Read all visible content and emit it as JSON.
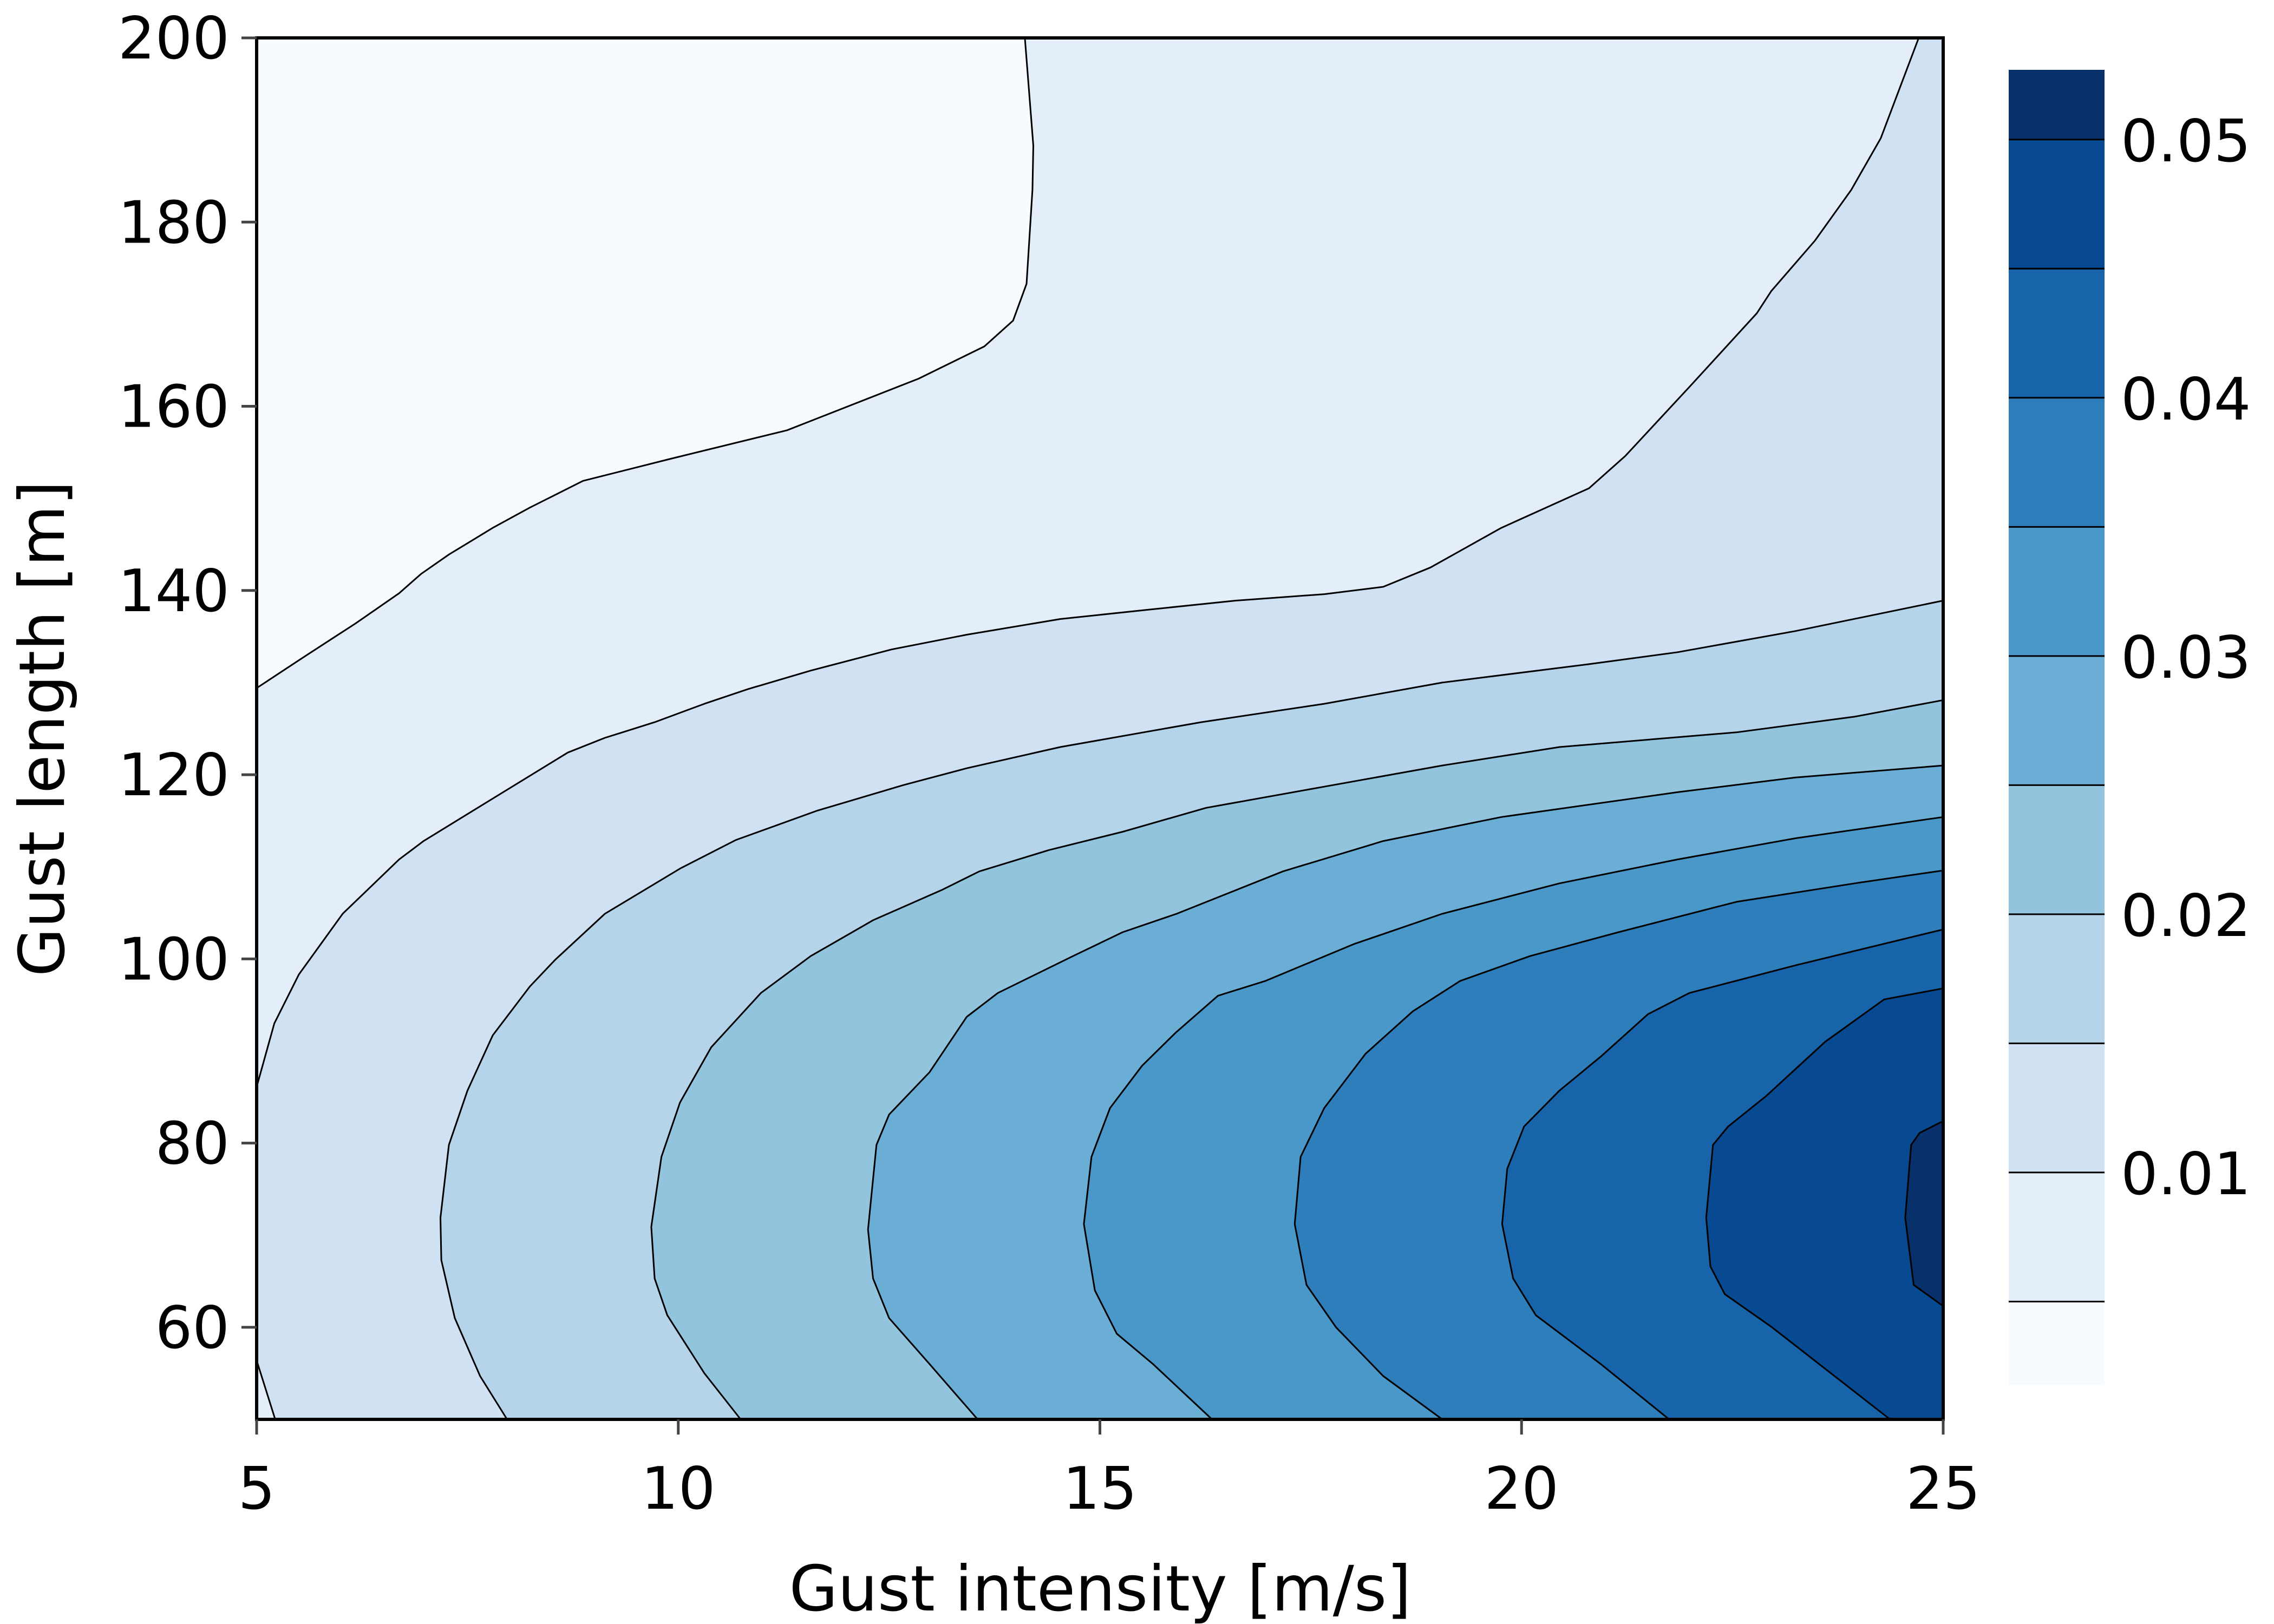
{
  "chart_data": {
    "type": "contourf",
    "title": "",
    "xlabel": "Gust intensity [m/s]",
    "ylabel": "Gust length [m]",
    "xlim": [
      5,
      25
    ],
    "ylim": [
      50,
      200
    ],
    "xticks": [
      5,
      10,
      15,
      20,
      25
    ],
    "yticks": [
      60,
      80,
      100,
      120,
      140,
      160,
      180,
      200
    ],
    "colormap": "Blues",
    "levels": [
      0.0018,
      0.005,
      0.01,
      0.015,
      0.02,
      0.025,
      0.03,
      0.035,
      0.04,
      0.045,
      0.05,
      0.0527
    ],
    "level_colors": [
      "#f7fbff",
      "#e3eef9",
      "#cfe1f2",
      "#b5d4e9",
      "#93c4de",
      "#6aaed6",
      "#4a98c9",
      "#2e7ebc",
      "#1764ab",
      "#084a91",
      "#08306b"
    ],
    "colorbar_ticks": [
      "0.01",
      "0.02",
      "0.03",
      "0.04",
      "0.05"
    ],
    "colorbar_tick_values": [
      0.01,
      0.02,
      0.03,
      0.04,
      0.05
    ],
    "contours": [
      {
        "level": 0.005,
        "segments": [
          [
            [
              5,
              129.4
            ],
            [
              5.58,
              132.9
            ],
            [
              6.17,
              136.4
            ],
            [
              6.69,
              139.7
            ],
            [
              6.95,
              141.8
            ],
            [
              7.28,
              143.9
            ],
            [
              7.8,
              146.8
            ],
            [
              8.24,
              149
            ],
            [
              8.87,
              151.9
            ],
            [
              9.91,
              154.3
            ],
            [
              11.29,
              157.4
            ],
            [
              12.85,
              163
            ],
            [
              13.63,
              166.5
            ],
            [
              13.97,
              169.3
            ],
            [
              14.13,
              173.3
            ],
            [
              14.2,
              183.5
            ],
            [
              14.21,
              188.3
            ],
            [
              14.11,
              200
            ]
          ]
        ]
      },
      {
        "level": 0.01,
        "segments": [
          [
            [
              5,
              86.1
            ],
            [
              5.21,
              93
            ],
            [
              5.5,
              98.3
            ],
            [
              6.02,
              104.9
            ],
            [
              6.69,
              110.8
            ],
            [
              6.98,
              112.8
            ],
            [
              7.87,
              117.8
            ],
            [
              8.69,
              122.4
            ],
            [
              9.13,
              124
            ],
            [
              9.72,
              125.7
            ],
            [
              10.31,
              127.7
            ],
            [
              10.83,
              129.3
            ],
            [
              11.57,
              131.3
            ],
            [
              12.53,
              133.6
            ],
            [
              13.42,
              135.2
            ],
            [
              14.53,
              136.9
            ],
            [
              15.56,
              137.9
            ],
            [
              16.61,
              138.9
            ],
            [
              17.66,
              139.6
            ],
            [
              18.36,
              140.4
            ],
            [
              18.92,
              142.5
            ],
            [
              19.76,
              146.8
            ],
            [
              20.8,
              151.1
            ],
            [
              21.23,
              154.6
            ],
            [
              22.0,
              162.2
            ],
            [
              22.79,
              170.1
            ],
            [
              22.96,
              172.5
            ],
            [
              23.48,
              178
            ],
            [
              23.91,
              183.5
            ],
            [
              24.26,
              189.1
            ],
            [
              24.71,
              200
            ]
          ],
          [
            [
              5.22,
              50
            ],
            [
              5,
              56.4
            ]
          ]
        ]
      },
      {
        "level": 0.015,
        "segments": [
          [
            [
              7.97,
              50
            ],
            [
              7.65,
              54.7
            ],
            [
              7.35,
              61
            ],
            [
              7.19,
              67.3
            ],
            [
              7.18,
              71.9
            ],
            [
              7.28,
              79.8
            ],
            [
              7.5,
              85.7
            ],
            [
              7.8,
              91.7
            ],
            [
              8.24,
              97
            ],
            [
              8.54,
              99.9
            ],
            [
              9.13,
              104.9
            ],
            [
              10.02,
              109.8
            ],
            [
              10.68,
              112.9
            ],
            [
              11.65,
              116.1
            ],
            [
              12.68,
              118.9
            ],
            [
              13.42,
              120.7
            ],
            [
              14.53,
              123
            ],
            [
              16.2,
              125.7
            ],
            [
              17.66,
              127.7
            ],
            [
              19.06,
              130
            ],
            [
              20.8,
              132
            ],
            [
              21.85,
              133.3
            ],
            [
              23.25,
              135.6
            ],
            [
              25,
              138.9
            ]
          ]
        ]
      },
      {
        "level": 0.02,
        "segments": [
          [
            [
              10.74,
              50
            ],
            [
              10.31,
              55
            ],
            [
              9.87,
              61.3
            ],
            [
              9.72,
              65.3
            ],
            [
              9.68,
              70.9
            ],
            [
              9.8,
              78.5
            ],
            [
              10.02,
              84.4
            ],
            [
              10.39,
              90.4
            ],
            [
              10.98,
              96.3
            ],
            [
              11.57,
              100.3
            ],
            [
              12.31,
              104.2
            ],
            [
              13.13,
              107.5
            ],
            [
              13.57,
              109.5
            ],
            [
              14.39,
              111.8
            ],
            [
              15.27,
              113.8
            ],
            [
              16.26,
              116.4
            ],
            [
              17.66,
              118.7
            ],
            [
              19.06,
              121
            ],
            [
              20.45,
              123
            ],
            [
              22.55,
              124.6
            ],
            [
              23.95,
              126.3
            ],
            [
              25,
              128.1
            ]
          ]
        ]
      },
      {
        "level": 0.025,
        "segments": [
          [
            [
              13.55,
              50
            ],
            [
              12.98,
              56
            ],
            [
              12.5,
              61
            ],
            [
              12.31,
              65.3
            ],
            [
              12.25,
              70.6
            ],
            [
              12.35,
              79.8
            ],
            [
              12.5,
              83.1
            ],
            [
              12.98,
              87.7
            ],
            [
              13.42,
              93.7
            ],
            [
              13.79,
              96.3
            ],
            [
              14.68,
              100.3
            ],
            [
              15.27,
              102.9
            ],
            [
              15.91,
              104.9
            ],
            [
              17.17,
              109.5
            ],
            [
              18.36,
              112.8
            ],
            [
              19.76,
              115.4
            ],
            [
              21.85,
              118.1
            ],
            [
              23.25,
              119.7
            ],
            [
              25,
              121
            ]
          ]
        ]
      },
      {
        "level": 0.03,
        "segments": [
          [
            [
              16.33,
              50
            ],
            [
              15.63,
              56
            ],
            [
              15.2,
              59.3
            ],
            [
              14.94,
              64
            ],
            [
              14.81,
              71.2
            ],
            [
              14.9,
              78.5
            ],
            [
              15.12,
              83.8
            ],
            [
              15.5,
              88.4
            ],
            [
              15.9,
              92
            ],
            [
              16.4,
              96
            ],
            [
              16.96,
              97.6
            ],
            [
              18.01,
              101.6
            ],
            [
              19.06,
              104.9
            ],
            [
              20.45,
              108.2
            ],
            [
              21.85,
              110.8
            ],
            [
              23.25,
              113.1
            ],
            [
              25,
              115.4
            ]
          ]
        ]
      },
      {
        "level": 0.035,
        "segments": [
          [
            [
              19.06,
              50
            ],
            [
              18.36,
              54.7
            ],
            [
              17.8,
              60
            ],
            [
              17.45,
              64.6
            ],
            [
              17.31,
              71.2
            ],
            [
              17.38,
              78.5
            ],
            [
              17.66,
              83.8
            ],
            [
              18.15,
              89.7
            ],
            [
              18.71,
              94.3
            ],
            [
              19.27,
              97.6
            ],
            [
              20.1,
              100.3
            ],
            [
              21.15,
              102.9
            ],
            [
              22.55,
              106.2
            ],
            [
              23.95,
              108.2
            ],
            [
              25,
              109.6
            ]
          ]
        ]
      },
      {
        "level": 0.04,
        "segments": [
          [
            [
              21.75,
              50
            ],
            [
              20.94,
              56
            ],
            [
              20.17,
              61.3
            ],
            [
              19.9,
              65.3
            ],
            [
              19.77,
              71.2
            ],
            [
              19.83,
              77.2
            ],
            [
              20.03,
              81.8
            ],
            [
              20.45,
              85.7
            ],
            [
              20.94,
              89.4
            ],
            [
              21.5,
              94
            ],
            [
              21.99,
              96.3
            ],
            [
              23.25,
              99.3
            ],
            [
              25,
              103.2
            ]
          ]
        ]
      },
      {
        "level": 0.045,
        "segments": [
          [
            [
              24.37,
              50
            ],
            [
              22.97,
              60
            ],
            [
              22.41,
              63.6
            ],
            [
              22.24,
              66.6
            ],
            [
              22.19,
              71.9
            ],
            [
              22.27,
              79.8
            ],
            [
              22.45,
              81.8
            ],
            [
              22.9,
              85.1
            ],
            [
              23.6,
              91
            ],
            [
              24.3,
              95.6
            ],
            [
              25,
              96.8
            ]
          ]
        ]
      },
      {
        "level": 0.05,
        "segments": [
          [
            [
              25,
              62.3
            ],
            [
              24.65,
              64.6
            ],
            [
              24.55,
              71.9
            ],
            [
              24.62,
              79.8
            ],
            [
              24.72,
              81.1
            ],
            [
              25,
              82.4
            ]
          ]
        ]
      }
    ]
  }
}
